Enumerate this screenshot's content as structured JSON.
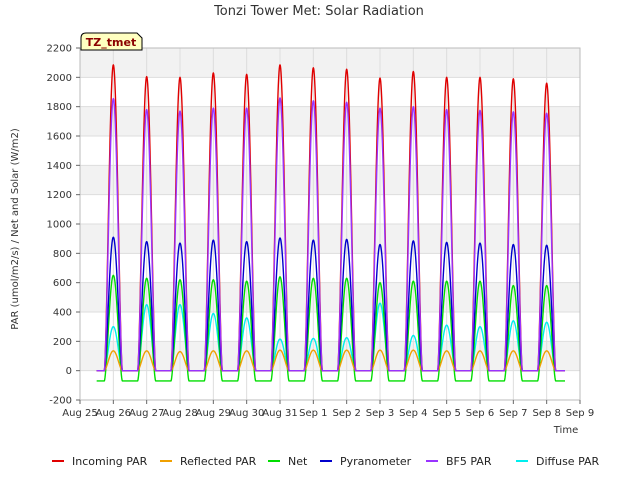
{
  "chart_data": {
    "type": "line",
    "title": "Tonzi Tower Met: Solar Radiation",
    "xlabel": "Time",
    "ylabel": "PAR (umol/m2/s) / Net and Solar (W/m2)",
    "ylim": [
      -200,
      2200
    ],
    "yticks": [
      -200,
      0,
      200,
      400,
      600,
      800,
      1000,
      1200,
      1400,
      1600,
      1800,
      2000,
      2200
    ],
    "x_range_days": [
      0,
      15
    ],
    "xtick_labels": [
      "Aug 25",
      "Aug 26",
      "Aug 27",
      "Aug 28",
      "Aug 29",
      "Aug 30",
      "Aug 31",
      "Sep 1",
      "Sep 2",
      "Sep 3",
      "Sep 4",
      "Sep 5",
      "Sep 6",
      "Sep 7",
      "Sep 8",
      "Sep 9"
    ],
    "annotation": "TZ_tmet",
    "grid": true,
    "legend_position": "bottom",
    "series": [
      {
        "name": "Incoming PAR",
        "color": "#e00000",
        "night": 0,
        "daily_peak": [
          2085,
          2005,
          2000,
          2030,
          2020,
          2085,
          2065,
          2055,
          1995,
          2040,
          2000,
          2000,
          1990,
          1960
        ]
      },
      {
        "name": "Reflected PAR",
        "color": "#f0a000",
        "night": 0,
        "daily_peak": [
          135,
          135,
          130,
          135,
          135,
          140,
          140,
          140,
          140,
          140,
          135,
          135,
          135,
          135
        ]
      },
      {
        "name": "Net",
        "color": "#00dd00",
        "night": -70,
        "daily_peak": [
          650,
          630,
          620,
          620,
          610,
          640,
          630,
          630,
          600,
          610,
          610,
          610,
          580,
          580
        ]
      },
      {
        "name": "Pyranometer",
        "color": "#0000cc",
        "night": 0,
        "daily_peak": [
          910,
          880,
          870,
          890,
          880,
          905,
          890,
          895,
          860,
          885,
          875,
          870,
          860,
          855
        ]
      },
      {
        "name": "BF5 PAR",
        "color": "#9933ff",
        "night": 0,
        "daily_peak": [
          1855,
          1780,
          1770,
          1790,
          1790,
          1860,
          1840,
          1830,
          1790,
          1800,
          1780,
          1775,
          1765,
          1755
        ]
      },
      {
        "name": "Diffuse PAR",
        "color": "#00eeee",
        "night": 0,
        "daily_peak": [
          300,
          450,
          450,
          390,
          360,
          215,
          220,
          225,
          460,
          240,
          310,
          300,
          340,
          330
        ]
      }
    ]
  }
}
